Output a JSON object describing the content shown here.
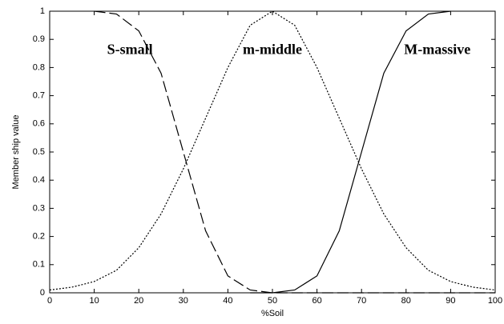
{
  "chart_data": {
    "type": "line",
    "xlabel": "%Soil",
    "ylabel": "Member ship value",
    "x": [
      0,
      5,
      10,
      15,
      20,
      25,
      30,
      35,
      40,
      45,
      50,
      55,
      60,
      65,
      70,
      75,
      80,
      85,
      90,
      95,
      100
    ],
    "series": [
      {
        "name": "S-small",
        "color": "#000000",
        "style": "dashed",
        "values": [
          null,
          null,
          1,
          0.99,
          0.93,
          0.78,
          0.5,
          0.22,
          0.06,
          0.01,
          0,
          0,
          0,
          0,
          0,
          0,
          0,
          0,
          0,
          0,
          0
        ]
      },
      {
        "name": "m-middle",
        "color": "#000000",
        "style": "dotted",
        "values": [
          0.01,
          0.02,
          0.04,
          0.08,
          0.16,
          0.28,
          0.44,
          0.62,
          0.8,
          0.95,
          1,
          0.95,
          0.8,
          0.62,
          0.44,
          0.28,
          0.16,
          0.08,
          0.04,
          0.02,
          0.01
        ]
      },
      {
        "name": "M-massive",
        "color": "#000000",
        "style": "solid",
        "values": [
          null,
          null,
          null,
          null,
          null,
          null,
          null,
          null,
          null,
          0,
          0,
          0.01,
          0.06,
          0.22,
          0.5,
          0.78,
          0.93,
          0.99,
          1,
          null,
          null
        ]
      }
    ],
    "xlim": [
      0,
      100
    ],
    "xticks": [
      0,
      10,
      20,
      30,
      40,
      50,
      60,
      70,
      80,
      90,
      100
    ],
    "ylim": [
      0,
      1
    ],
    "yticks": [
      0,
      0.1,
      0.2,
      0.3,
      0.4,
      0.5,
      0.6,
      0.7,
      0.8,
      0.9,
      1
    ],
    "grid": false
  }
}
